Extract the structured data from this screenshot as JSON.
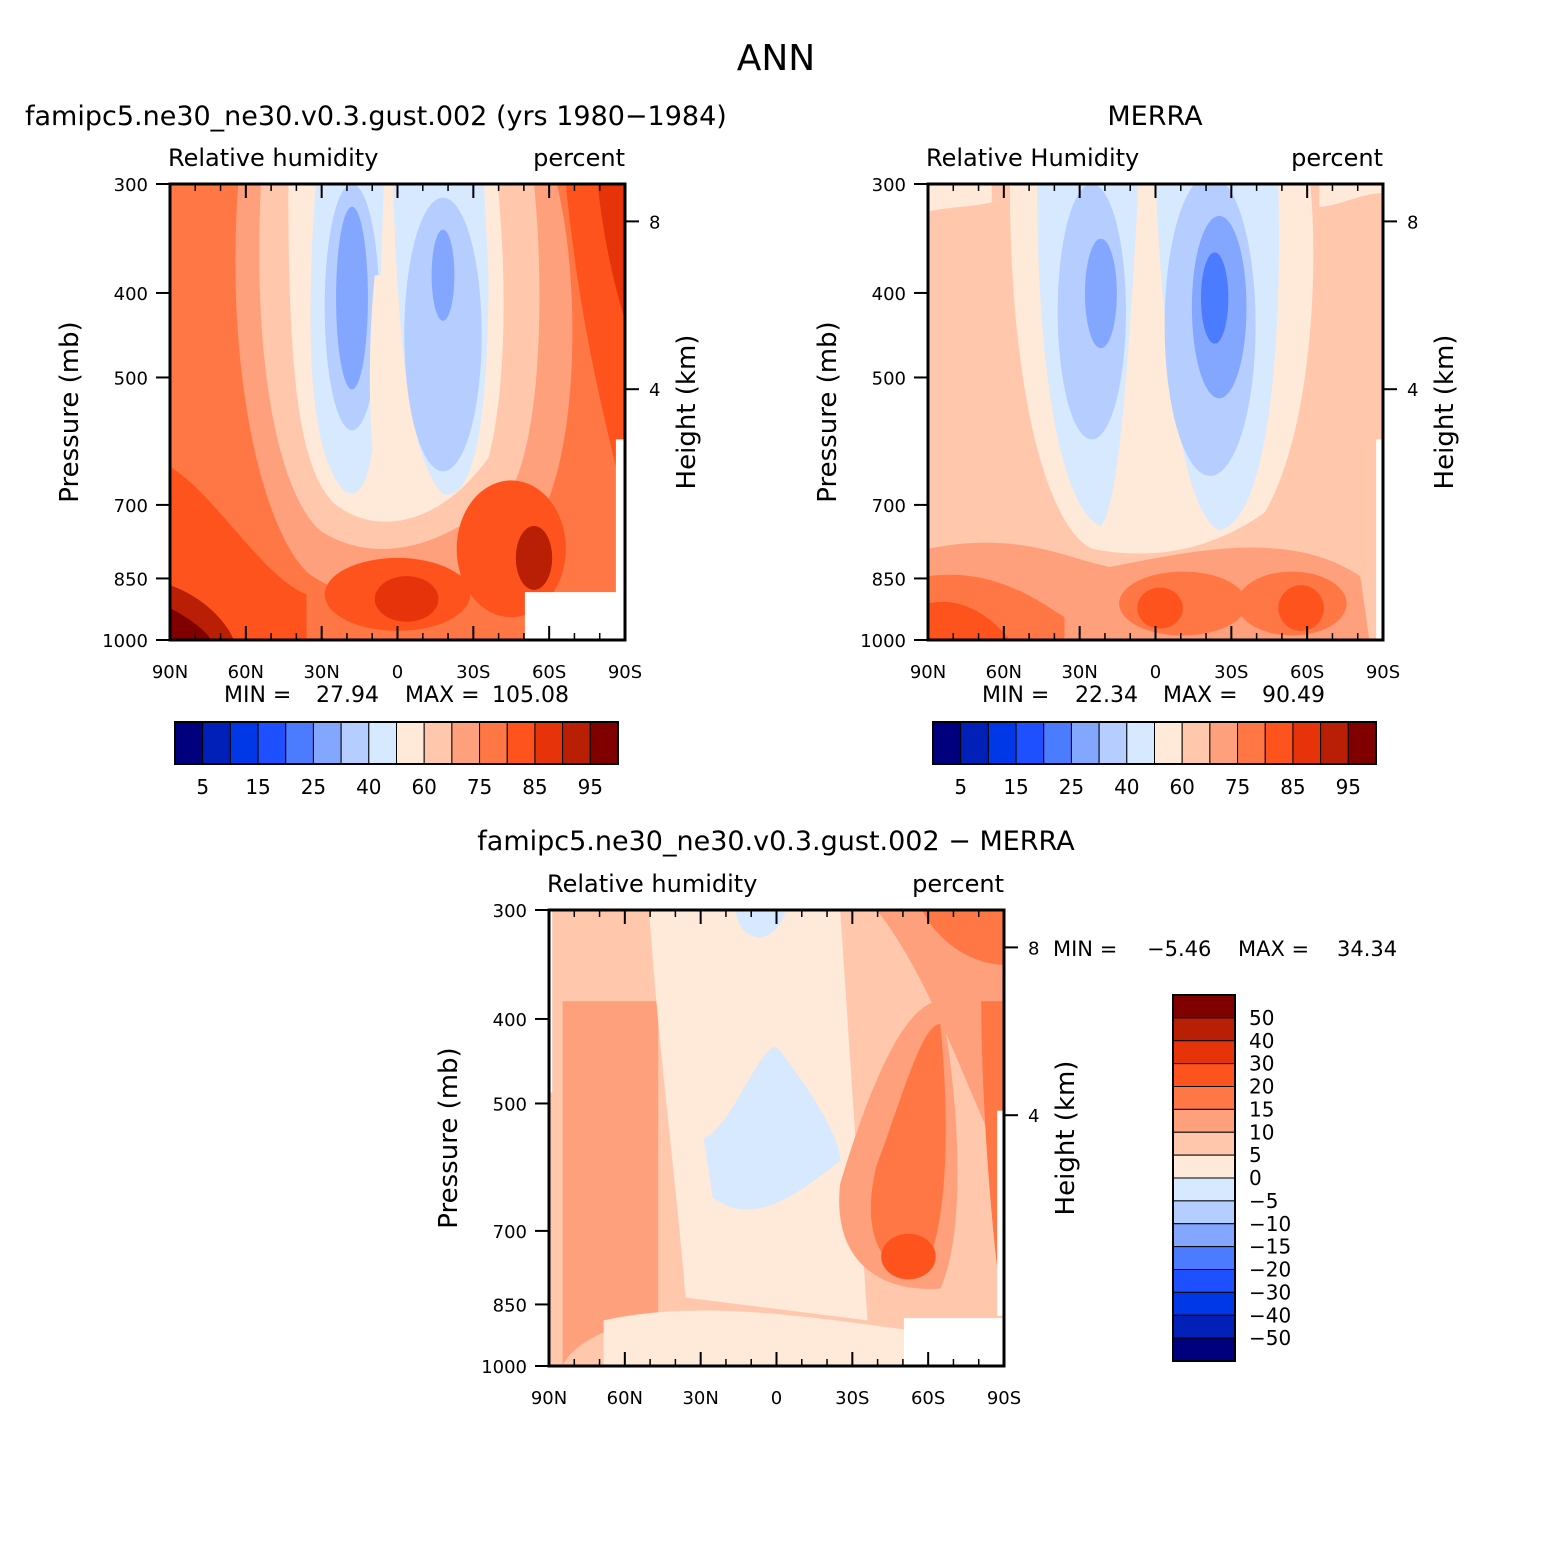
{
  "page_title": "ANN",
  "chart_data": [
    {
      "type": "heatmap",
      "title": "famipc5.ne30_ne30.v0.3.gust.002 (yrs 1980−1984)",
      "variable": "Relative humidity",
      "units": "percent",
      "ylabel": "Pressure (mb)",
      "ylabel_right": "Height (km)",
      "x_ticks": [
        "90N",
        "60N",
        "30N",
        "0",
        "30S",
        "60S",
        "90S"
      ],
      "y_ticks": [
        "300",
        "400",
        "500",
        "700",
        "850",
        "1000"
      ],
      "height_ticks": [
        "8",
        "4"
      ],
      "ylim": [
        1000,
        300
      ],
      "min_label": "MIN =",
      "min_value": "27.94",
      "max_label": "MAX =",
      "max_value": "105.08",
      "colorbar_labels": [
        "5",
        "15",
        "25",
        "40",
        "60",
        "75",
        "85",
        "95"
      ]
    },
    {
      "type": "heatmap",
      "title": "MERRA",
      "variable": "Relative Humidity",
      "units": "percent",
      "ylabel": "Pressure (mb)",
      "ylabel_right": "Height (km)",
      "x_ticks": [
        "90N",
        "60N",
        "30N",
        "0",
        "30S",
        "60S",
        "90S"
      ],
      "y_ticks": [
        "300",
        "400",
        "500",
        "700",
        "850",
        "1000"
      ],
      "height_ticks": [
        "8",
        "4"
      ],
      "ylim": [
        1000,
        300
      ],
      "min_label": "MIN =",
      "min_value": "22.34",
      "max_label": "MAX =",
      "max_value": "90.49",
      "colorbar_labels": [
        "5",
        "15",
        "25",
        "40",
        "60",
        "75",
        "85",
        "95"
      ]
    },
    {
      "type": "heatmap",
      "title": "famipc5.ne30_ne30.v0.3.gust.002 − MERRA",
      "variable": "Relative humidity",
      "units": "percent",
      "ylabel": "Pressure (mb)",
      "ylabel_right": "Height (km)",
      "x_ticks": [
        "90N",
        "60N",
        "30N",
        "0",
        "30S",
        "60S",
        "90S"
      ],
      "y_ticks": [
        "300",
        "400",
        "500",
        "700",
        "850",
        "1000"
      ],
      "height_ticks": [
        "8",
        "4"
      ],
      "ylim": [
        1000,
        300
      ],
      "min_label": "MIN =",
      "min_value": "−5.46",
      "max_label": "MAX =",
      "max_value": "34.34",
      "colorbar_labels": [
        "50",
        "40",
        "30",
        "20",
        "15",
        "10",
        "5",
        "0",
        "−5",
        "−10",
        "−15",
        "−20",
        "−30",
        "−40",
        "−50"
      ]
    }
  ],
  "palette": {
    "abs": [
      "#00007f",
      "#0020b8",
      "#0037e6",
      "#1f50ff",
      "#4b7cff",
      "#83a6ff",
      "#b5cdff",
      "#d6e9ff",
      "#ffe9d8",
      "#ffc8ad",
      "#ffa07c",
      "#ff7744",
      "#ff531d",
      "#e6330a",
      "#b81f04",
      "#800000"
    ],
    "diff": [
      "#800000",
      "#b81f04",
      "#e6330a",
      "#ff531d",
      "#ff7744",
      "#ffa07c",
      "#ffc8ad",
      "#ffe9d8",
      "#d6e9ff",
      "#b5cdff",
      "#83a6ff",
      "#4b7cff",
      "#1f50ff",
      "#0037e6",
      "#0020b8",
      "#00007f"
    ]
  }
}
